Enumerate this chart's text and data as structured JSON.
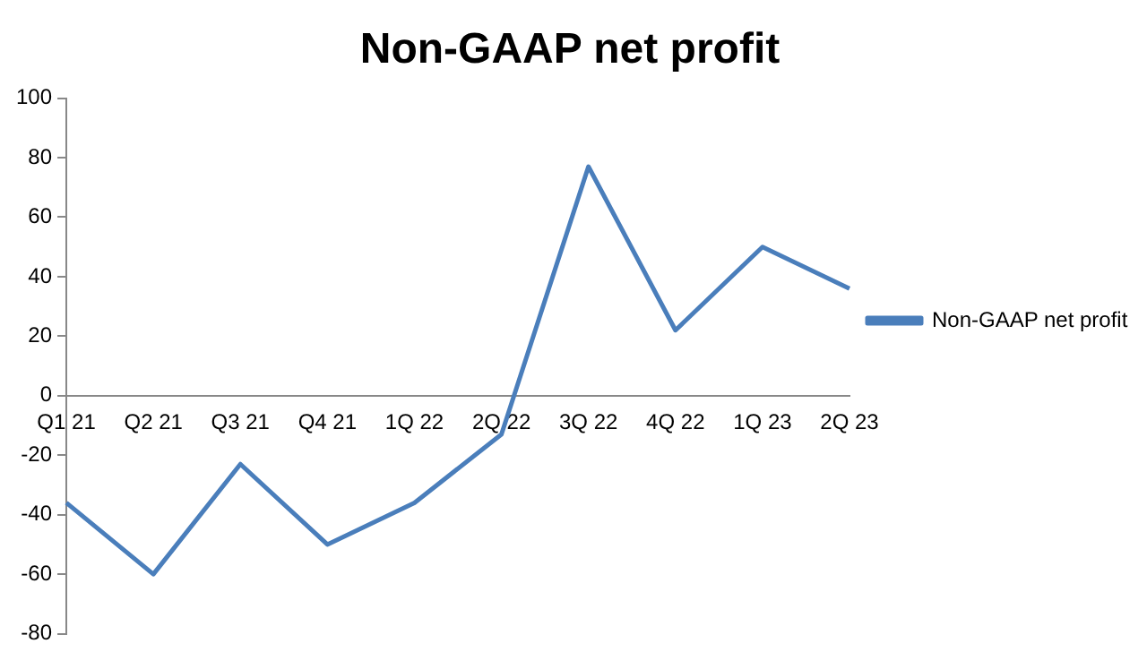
{
  "chart_data": {
    "type": "line",
    "title": "Non-GAAP net profit",
    "categories": [
      "Q1 21",
      "Q2 21",
      "Q3 21",
      "Q4 21",
      "1Q 22",
      "2Q 22",
      "3Q 22",
      "4Q 22",
      "1Q 23",
      "2Q 23"
    ],
    "series": [
      {
        "name": "Non-GAAP net profit",
        "color": "#4a7ebb",
        "values": [
          -36,
          -60,
          -23,
          -50,
          -36,
          -13,
          77,
          22,
          50,
          36
        ]
      }
    ],
    "ylim": [
      -80,
      100
    ],
    "yticks": [
      -80,
      -60,
      -40,
      -20,
      0,
      20,
      40,
      60,
      80,
      100
    ],
    "grid": false,
    "legend": "right",
    "marker": "none",
    "line_style": "solid"
  }
}
